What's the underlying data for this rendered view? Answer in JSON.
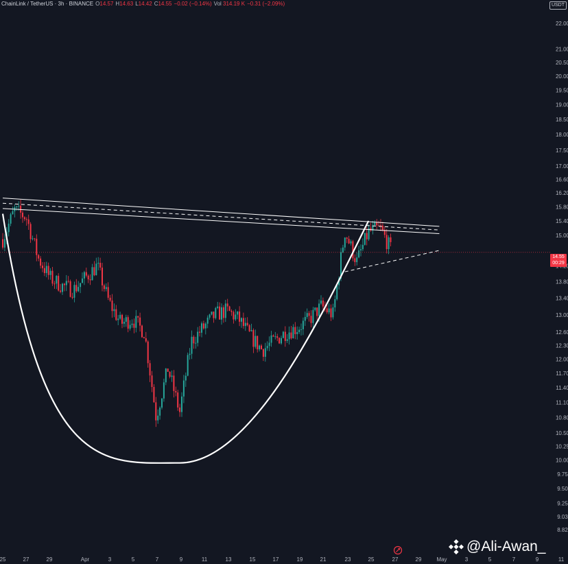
{
  "legend": {
    "symbol": "ChainLink / TetherUS · 3h · BINANCE",
    "o_label": "O",
    "o": "14.57",
    "h_label": "H",
    "h": "14.63",
    "l_label": "L",
    "l": "14.42",
    "c_label": "C",
    "c": "14.55",
    "change": "−0.02 (−0.14%)",
    "vol_label": "Vol",
    "vol": "314.19 K",
    "vol_change": "−0.31 (−2.09%)"
  },
  "currency_badge": "USDT",
  "price_tag": {
    "price": "14.55",
    "countdown": "00:29"
  },
  "watermark": "@Ali-Awan_",
  "colors": {
    "background": "#131722",
    "up": "#26a69a",
    "down": "#f23645",
    "pattern": "#ffffff"
  },
  "chart_data": {
    "type": "candlestick",
    "title": "ChainLink / TetherUS · 3h · BINANCE",
    "y_axis": {
      "scale": "log",
      "ylim": [
        8.82,
        22.0
      ],
      "ticks": [
        "22.00",
        "21.00",
        "20.50",
        "20.00",
        "19.50",
        "19.00",
        "18.50",
        "18.00",
        "17.50",
        "17.00",
        "16.60",
        "16.20",
        "15.80",
        "15.40",
        "15.00",
        "14.55",
        "14.20",
        "13.80",
        "13.40",
        "13.00",
        "12.60",
        "12.30",
        "12.00",
        "11.70",
        "11.40",
        "11.10",
        "10.80",
        "10.50",
        "10.25",
        "10.00",
        "9.75",
        "9.50",
        "9.25",
        "9.03",
        "8.82"
      ]
    },
    "x_axis": {
      "ticks": [
        "25",
        "27",
        "29",
        "Apr",
        "3",
        "5",
        "7",
        "9",
        "11",
        "13",
        "15",
        "17",
        "19",
        "21",
        "23",
        "25",
        "27",
        "29",
        "May",
        "3",
        "5",
        "7",
        "9",
        "11"
      ]
    },
    "grid": false,
    "close_path": [
      [
        "Mar 25",
        14.9
      ],
      [
        "Mar 26",
        15.7
      ],
      [
        "Mar 27",
        15.5
      ],
      [
        "Mar 28",
        14.4
      ],
      [
        "Mar 29",
        13.9
      ],
      [
        "Mar 30",
        13.7
      ],
      [
        "Mar 31",
        13.6
      ],
      [
        "Apr 1",
        13.9
      ],
      [
        "Apr 2",
        14.2
      ],
      [
        "Apr 3",
        13.3
      ],
      [
        "Apr 4",
        12.8
      ],
      [
        "Apr 5",
        12.9
      ],
      [
        "Apr 6",
        12.6
      ],
      [
        "Apr 7",
        10.8
      ],
      [
        "Apr 8",
        11.8
      ],
      [
        "Apr 9",
        10.9
      ],
      [
        "Apr 10",
        12.4
      ],
      [
        "Apr 11",
        12.7
      ],
      [
        "Apr 12",
        13.0
      ],
      [
        "Apr 13",
        13.1
      ],
      [
        "Apr 14",
        12.9
      ],
      [
        "Apr 15",
        12.5
      ],
      [
        "Apr 16",
        12.2
      ],
      [
        "Apr 17",
        12.4
      ],
      [
        "Apr 18",
        12.6
      ],
      [
        "Apr 19",
        12.7
      ],
      [
        "Apr 20",
        12.9
      ],
      [
        "Apr 21",
        13.2
      ],
      [
        "Apr 22",
        13.0
      ],
      [
        "Apr 23",
        15.1
      ],
      [
        "Apr 24",
        14.3
      ],
      [
        "Apr 25",
        15.1
      ],
      [
        "Apr 26",
        15.2
      ],
      [
        "Apr 27",
        14.55
      ]
    ],
    "overlays": [
      {
        "kind": "cup",
        "from": [
          "Mar 25",
          15.6
        ],
        "bottom": [
          "Apr 9",
          9.95
        ],
        "to": [
          "Apr 25",
          15.4
        ]
      },
      {
        "kind": "resistance-upper",
        "from": [
          "Mar 25",
          16.05
        ],
        "to": [
          "May 1",
          15.25
        ]
      },
      {
        "kind": "resistance-mid-dashed",
        "from": [
          "Mar 25",
          15.9
        ],
        "to": [
          "May 1",
          15.15
        ]
      },
      {
        "kind": "resistance-lower",
        "from": [
          "Mar 25",
          15.75
        ],
        "to": [
          "May 1",
          15.05
        ]
      },
      {
        "kind": "handle-dashed",
        "from": [
          "Apr 23",
          14.05
        ],
        "to": [
          "May 1",
          14.6
        ]
      }
    ],
    "last_price": 14.55
  }
}
